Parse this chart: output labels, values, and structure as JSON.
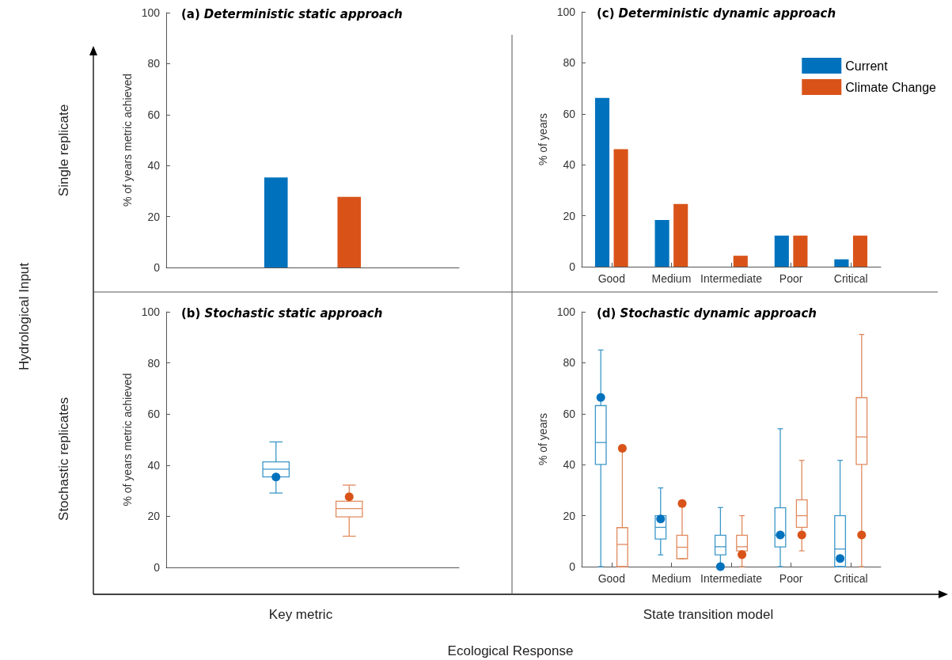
{
  "chart_data": [
    {
      "type": "bar",
      "title": "(a) Deterministic static approach",
      "ylabel": "% of years metric achieved",
      "categories": [
        null,
        null,
        null,
        null
      ],
      "values": [
        null,
        35.3,
        27.7,
        null
      ],
      "colors": [
        null,
        "#0072bd",
        "#d95319",
        null
      ],
      "ylim": [
        0,
        100
      ],
      "yticks": [
        0,
        20,
        40,
        60,
        80,
        100
      ],
      "grid": false
    },
    {
      "type": "bar",
      "title": "(c) Deterministic dynamic approach",
      "ylabel": "% of years",
      "categories": [
        "Good",
        "Medium",
        "Intermediate",
        "Poor",
        "Critical"
      ],
      "series": [
        {
          "name": "Current",
          "color": "#0072bd",
          "values": [
            66.2,
            18.3,
            0,
            12.2,
            2.9
          ]
        },
        {
          "name": "Climate Change",
          "color": "#d95319",
          "values": [
            46.1,
            24.6,
            4.3,
            12.2,
            12.2
          ]
        }
      ],
      "ylim": [
        0,
        100
      ],
      "yticks": [
        0,
        20,
        40,
        60,
        80,
        100
      ],
      "grid": false,
      "legend": "top right"
    },
    {
      "type": "box",
      "title": "(b) Stochastic static approach",
      "ylabel": "% of years metric achieved",
      "categories": [
        null,
        null,
        null,
        null
      ],
      "series": [
        {
          "color": "#3c97c9",
          "boxes": [
            null,
            {
              "low": 29.1,
              "q1": 35.4,
              "median": 38.4,
              "q3": 41.3,
              "high": 49.1
            },
            null,
            null
          ]
        },
        {
          "color": "#e08a5e",
          "boxes": [
            null,
            null,
            {
              "low": 12.2,
              "q1": 19.8,
              "median": 23.0,
              "q3": 25.9,
              "high": 32.2
            },
            null
          ]
        },
        {
          "type": "scatter",
          "color": "#0072bd",
          "values": [
            null,
            35.4,
            null,
            null
          ]
        },
        {
          "type": "scatter",
          "color": "#d95319",
          "values": [
            null,
            null,
            27.6,
            null
          ]
        }
      ],
      "ylim": [
        0,
        100
      ],
      "yticks": [
        0,
        20,
        40,
        60,
        80,
        100
      ],
      "grid": false,
      "marker": "circle"
    },
    {
      "type": "box",
      "title": "(d) Stochastic dynamic approach",
      "ylabel": "% of years",
      "categories": [
        "Good",
        "Medium",
        "Intermediate",
        "Poor",
        "Critical"
      ],
      "series": [
        {
          "color": "#3c97c9",
          "boxes": [
            {
              "low": 0,
              "q1": 40.1,
              "median": 48.7,
              "q3": 63.2,
              "high": 85.0
            },
            {
              "low": 4.6,
              "q1": 10.8,
              "median": 15.4,
              "q3": 20.0,
              "high": 30.9
            },
            {
              "low": 0,
              "q1": 4.6,
              "median": 7.8,
              "q3": 12.3,
              "high": 23.2
            },
            {
              "low": 0,
              "q1": 7.7,
              "median": 12.3,
              "q3": 23.1,
              "high": 54.1
            },
            {
              "low": 0,
              "q1": 0,
              "median": 6.9,
              "q3": 20.0,
              "high": 41.7
            }
          ]
        },
        {
          "color": "#e08a5e",
          "boxes": [
            {
              "low": 0,
              "q1": 0,
              "median": 8.7,
              "q3": 15.3,
              "high": 46.4
            },
            {
              "low": 3.1,
              "q1": 3.1,
              "median": 7.6,
              "q3": 12.3,
              "high": 24.8
            },
            {
              "low": 0,
              "q1": 6.2,
              "median": 7.8,
              "q3": 12.3,
              "high": 20.0
            },
            {
              "low": 6.2,
              "q1": 15.4,
              "median": 20.0,
              "q3": 26.2,
              "high": 41.7
            },
            {
              "low": 0,
              "q1": 40.1,
              "median": 50.9,
              "q3": 66.3,
              "high": 91.1
            }
          ]
        },
        {
          "type": "scatter",
          "color": "#0072bd",
          "values": [
            66.4,
            18.7,
            0,
            12.4,
            3.2
          ]
        },
        {
          "type": "scatter",
          "color": "#d95319",
          "values": [
            46.4,
            24.8,
            4.7,
            12.4,
            12.4
          ]
        }
      ],
      "ylim": [
        0,
        100
      ],
      "yticks": [
        0,
        20,
        40,
        60,
        80,
        100
      ],
      "grid": false,
      "marker": "circle"
    },
    {
      "type": "other",
      "annotations": [
        "Hydrological Input",
        "Single replicate",
        "Stochastic replicates",
        "Key metric",
        "State transition model",
        "Ecological Response"
      ]
    }
  ]
}
